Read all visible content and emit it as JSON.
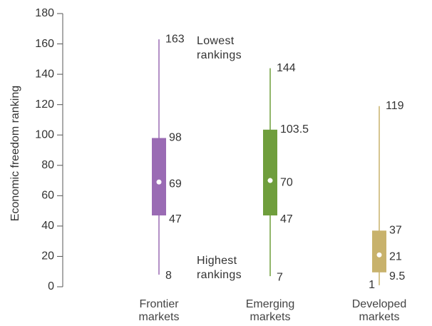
{
  "chart_data": {
    "type": "box",
    "y_label": "Economic freedom ranking",
    "ylim": [
      0,
      180
    ],
    "yticks": [
      0,
      20,
      40,
      60,
      80,
      100,
      120,
      140,
      160,
      180
    ],
    "categories": [
      "Frontier markets",
      "Emerging markets",
      "Developed markets"
    ],
    "boxes": [
      {
        "min": 8,
        "q1": 47,
        "median": 69,
        "q3": 98,
        "max": 163,
        "color": "#9a6bb4"
      },
      {
        "min": 7,
        "q1": 47,
        "median": 70,
        "q3": 103.5,
        "max": 144,
        "color": "#6f9e3c"
      },
      {
        "min": 1,
        "q1": 9.5,
        "median": 21,
        "q3": 37,
        "max": 119,
        "color": "#c8b26c"
      }
    ],
    "annotations": [
      "Lowest rankings",
      "Highest rankings"
    ]
  }
}
